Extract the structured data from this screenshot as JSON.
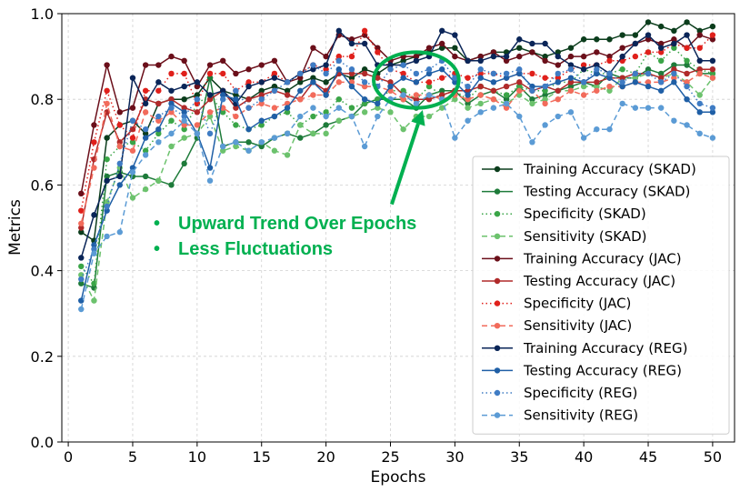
{
  "chart_data": {
    "type": "line",
    "title": "",
    "xlabel": "Epochs",
    "ylabel": "Metrics",
    "xlim": [
      -0.5,
      51.7
    ],
    "ylim": [
      0.0,
      1.0
    ],
    "xticks": [
      0,
      5,
      10,
      15,
      20,
      25,
      30,
      35,
      40,
      45,
      50
    ],
    "yticks": [
      0.0,
      0.2,
      0.4,
      0.6,
      0.8,
      1.0
    ],
    "xtick_labels": [
      "0",
      "5",
      "10",
      "15",
      "20",
      "25",
      "30",
      "35",
      "40",
      "45",
      "50"
    ],
    "ytick_labels": [
      "0.0",
      "0.2",
      "0.4",
      "0.6",
      "0.8",
      "1.0"
    ],
    "grid": true,
    "legend_position": "center-right",
    "series": [
      {
        "name": "Training Accuracy (SKAD)",
        "color": "#0b3d1c",
        "dash": "solid",
        "values": [
          0.49,
          0.47,
          0.71,
          0.74,
          0.75,
          0.72,
          0.79,
          0.8,
          0.8,
          0.81,
          0.85,
          0.82,
          0.81,
          0.8,
          0.82,
          0.83,
          0.82,
          0.84,
          0.85,
          0.84,
          0.86,
          0.85,
          0.87,
          0.86,
          0.88,
          0.89,
          0.9,
          0.91,
          0.92,
          0.92,
          0.89,
          0.9,
          0.91,
          0.91,
          0.92,
          0.91,
          0.9,
          0.91,
          0.92,
          0.94,
          0.94,
          0.94,
          0.95,
          0.95,
          0.98,
          0.97,
          0.96,
          0.98,
          0.96,
          0.97
        ]
      },
      {
        "name": "Testing Accuracy (SKAD)",
        "color": "#1e7b3a",
        "dash": "solid",
        "values": [
          0.37,
          0.36,
          0.62,
          0.63,
          0.62,
          0.62,
          0.61,
          0.6,
          0.65,
          0.71,
          0.85,
          0.69,
          0.7,
          0.7,
          0.69,
          0.71,
          0.72,
          0.71,
          0.72,
          0.74,
          0.75,
          0.76,
          0.79,
          0.8,
          0.8,
          0.8,
          0.78,
          0.81,
          0.82,
          0.82,
          0.79,
          0.81,
          0.82,
          0.8,
          0.83,
          0.8,
          0.81,
          0.82,
          0.83,
          0.84,
          0.83,
          0.86,
          0.85,
          0.85,
          0.87,
          0.86,
          0.88,
          0.88,
          0.86,
          0.86
        ]
      },
      {
        "name": "Specificity (SKAD)",
        "color": "#3aa547",
        "dash": "dotted",
        "values": [
          0.41,
          0.37,
          0.66,
          0.69,
          0.7,
          0.68,
          0.72,
          0.75,
          0.73,
          0.79,
          0.81,
          0.77,
          0.74,
          0.73,
          0.74,
          0.76,
          0.77,
          0.74,
          0.76,
          0.77,
          0.8,
          0.78,
          0.79,
          0.8,
          0.82,
          0.82,
          0.8,
          0.83,
          0.81,
          0.82,
          0.8,
          0.83,
          0.82,
          0.81,
          0.83,
          0.82,
          0.82,
          0.84,
          0.84,
          0.87,
          0.86,
          0.86,
          0.87,
          0.86,
          0.91,
          0.89,
          0.92,
          0.89,
          0.87,
          0.86
        ]
      },
      {
        "name": "Sensitivity (SKAD)",
        "color": "#6cc26d",
        "dash": "dashed",
        "values": [
          0.39,
          0.33,
          0.56,
          0.64,
          0.57,
          0.59,
          0.61,
          0.69,
          0.71,
          0.72,
          0.76,
          0.68,
          0.69,
          0.68,
          0.7,
          0.68,
          0.67,
          0.74,
          0.72,
          0.72,
          0.75,
          0.76,
          0.77,
          0.78,
          0.77,
          0.73,
          0.76,
          0.76,
          0.78,
          0.8,
          0.78,
          0.79,
          0.8,
          0.79,
          0.81,
          0.79,
          0.8,
          0.82,
          0.82,
          0.83,
          0.83,
          0.82,
          0.85,
          0.85,
          0.86,
          0.85,
          0.86,
          0.84,
          0.81,
          0.85
        ]
      },
      {
        "name": "Training Accuracy (JAC)",
        "color": "#6b0f1a",
        "dash": "solid",
        "values": [
          0.58,
          0.74,
          0.88,
          0.77,
          0.78,
          0.88,
          0.88,
          0.9,
          0.89,
          0.83,
          0.88,
          0.89,
          0.86,
          0.87,
          0.88,
          0.89,
          0.84,
          0.85,
          0.92,
          0.9,
          0.95,
          0.94,
          0.95,
          0.92,
          0.89,
          0.9,
          0.9,
          0.92,
          0.93,
          0.9,
          0.89,
          0.9,
          0.91,
          0.89,
          0.9,
          0.91,
          0.89,
          0.88,
          0.9,
          0.9,
          0.91,
          0.9,
          0.92,
          0.93,
          0.94,
          0.93,
          0.94,
          0.92,
          0.95,
          0.94
        ]
      },
      {
        "name": "Testing Accuracy (JAC)",
        "color": "#b02a2a",
        "dash": "solid",
        "values": [
          0.5,
          0.66,
          0.77,
          0.7,
          0.73,
          0.8,
          0.79,
          0.8,
          0.78,
          0.77,
          0.8,
          0.82,
          0.78,
          0.8,
          0.81,
          0.82,
          0.81,
          0.8,
          0.84,
          0.82,
          0.86,
          0.86,
          0.86,
          0.85,
          0.84,
          0.81,
          0.8,
          0.8,
          0.81,
          0.82,
          0.82,
          0.83,
          0.82,
          0.83,
          0.84,
          0.82,
          0.83,
          0.82,
          0.84,
          0.84,
          0.84,
          0.85,
          0.85,
          0.86,
          0.86,
          0.85,
          0.87,
          0.86,
          0.87,
          0.87
        ]
      },
      {
        "name": "Specificity (JAC)",
        "color": "#e0201b",
        "dash": "dotted",
        "values": [
          0.54,
          0.7,
          0.82,
          0.74,
          0.71,
          0.82,
          0.82,
          0.86,
          0.86,
          0.79,
          0.86,
          0.86,
          0.82,
          0.84,
          0.84,
          0.86,
          0.84,
          0.86,
          0.88,
          0.87,
          0.9,
          0.9,
          0.96,
          0.91,
          0.87,
          0.86,
          0.84,
          0.84,
          0.85,
          0.86,
          0.85,
          0.86,
          0.86,
          0.85,
          0.86,
          0.86,
          0.85,
          0.85,
          0.87,
          0.88,
          0.88,
          0.89,
          0.89,
          0.9,
          0.91,
          0.91,
          0.93,
          0.92,
          0.92,
          0.95
        ]
      },
      {
        "name": "Sensitivity (JAC)",
        "color": "#f26b5b",
        "dash": "dashed",
        "values": [
          0.51,
          0.64,
          0.79,
          0.69,
          0.68,
          0.77,
          0.75,
          0.77,
          0.74,
          0.74,
          0.77,
          0.78,
          0.76,
          0.78,
          0.79,
          0.78,
          0.79,
          0.8,
          0.81,
          0.81,
          0.84,
          0.84,
          0.83,
          0.83,
          0.82,
          0.8,
          0.81,
          0.81,
          0.8,
          0.81,
          0.8,
          0.81,
          0.8,
          0.78,
          0.82,
          0.82,
          0.79,
          0.8,
          0.82,
          0.81,
          0.82,
          0.83,
          0.83,
          0.84,
          0.84,
          0.84,
          0.85,
          0.84,
          0.86,
          0.85
        ]
      },
      {
        "name": "Training Accuracy (REG)",
        "color": "#0a2558",
        "dash": "solid",
        "values": [
          0.43,
          0.53,
          0.61,
          0.62,
          0.85,
          0.79,
          0.84,
          0.82,
          0.83,
          0.84,
          0.81,
          0.82,
          0.79,
          0.83,
          0.84,
          0.85,
          0.84,
          0.86,
          0.87,
          0.88,
          0.96,
          0.93,
          0.93,
          0.88,
          0.88,
          0.88,
          0.89,
          0.9,
          0.96,
          0.95,
          0.89,
          0.89,
          0.9,
          0.9,
          0.94,
          0.93,
          0.93,
          0.9,
          0.88,
          0.87,
          0.88,
          0.86,
          0.9,
          0.93,
          0.95,
          0.92,
          0.93,
          0.95,
          0.89,
          0.89
        ]
      },
      {
        "name": "Testing Accuracy (REG)",
        "color": "#1f5fa6",
        "dash": "solid",
        "values": [
          0.33,
          0.46,
          0.54,
          0.6,
          0.64,
          0.71,
          0.73,
          0.79,
          0.77,
          0.72,
          0.64,
          0.81,
          0.8,
          0.73,
          0.75,
          0.76,
          0.78,
          0.82,
          0.84,
          0.81,
          0.87,
          0.83,
          0.8,
          0.79,
          0.83,
          0.85,
          0.84,
          0.86,
          0.87,
          0.84,
          0.81,
          0.85,
          0.84,
          0.85,
          0.86,
          0.83,
          0.83,
          0.84,
          0.85,
          0.84,
          0.86,
          0.85,
          0.83,
          0.84,
          0.83,
          0.82,
          0.84,
          0.8,
          0.77,
          0.77
        ]
      },
      {
        "name": "Specificity (REG)",
        "color": "#3f7cc4",
        "dash": "dotted",
        "values": [
          0.38,
          0.45,
          0.55,
          0.65,
          0.75,
          0.73,
          0.76,
          0.78,
          0.76,
          0.8,
          0.72,
          0.8,
          0.82,
          0.78,
          0.8,
          0.82,
          0.84,
          0.86,
          0.88,
          0.86,
          0.89,
          0.87,
          0.84,
          0.83,
          0.87,
          0.88,
          0.86,
          0.87,
          0.89,
          0.85,
          0.83,
          0.87,
          0.86,
          0.86,
          0.87,
          0.82,
          0.83,
          0.86,
          0.87,
          0.84,
          0.87,
          0.86,
          0.84,
          0.86,
          0.86,
          0.84,
          0.86,
          0.83,
          0.79,
          0.78
        ]
      },
      {
        "name": "Sensitivity (REG)",
        "color": "#5b9bd5",
        "dash": "dashed",
        "values": [
          0.31,
          0.44,
          0.48,
          0.49,
          0.63,
          0.67,
          0.7,
          0.72,
          0.75,
          0.72,
          0.61,
          0.69,
          0.7,
          0.68,
          0.7,
          0.71,
          0.72,
          0.76,
          0.78,
          0.76,
          0.78,
          0.76,
          0.69,
          0.76,
          0.8,
          0.81,
          0.79,
          0.81,
          0.8,
          0.71,
          0.75,
          0.77,
          0.78,
          0.79,
          0.76,
          0.7,
          0.74,
          0.76,
          0.77,
          0.71,
          0.73,
          0.73,
          0.79,
          0.78,
          0.78,
          0.78,
          0.75,
          0.74,
          0.72,
          0.71
        ]
      }
    ],
    "annotations": {
      "bullet": "•",
      "line1": "Upward Trend Over Epochs",
      "line2": "Less Fluctuations",
      "color": "#00b050",
      "circle_center": [
        27,
        0.845
      ],
      "circle_radius_epochs": 3.3,
      "circle_radius_metric": 0.065,
      "arrow_from": [
        25.1,
        0.555
      ],
      "arrow_to": [
        27.5,
        0.775
      ]
    }
  }
}
